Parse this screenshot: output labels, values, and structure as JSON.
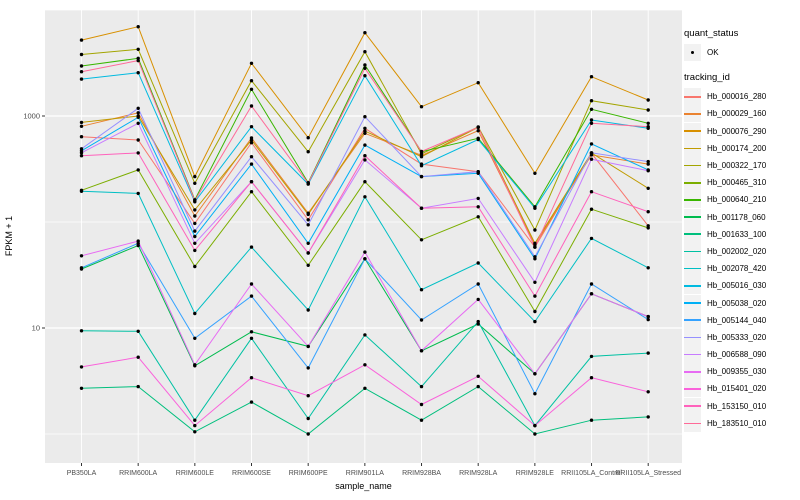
{
  "figure": {
    "y_axis_title": "FPKM + 1",
    "x_axis_title": "sample_name",
    "legend": {
      "quant_title": "quant_status",
      "ok_label": "OK",
      "tracking_title": "tracking_id"
    },
    "style": {
      "panel_bg": "#EBEBEB",
      "grid_color": "#FFFFFF",
      "tick_text_color": "#4D4D4D",
      "tick_mark_color": "#333333",
      "point_color": "#000000",
      "legend_key_bg": "#F2F2F2"
    }
  },
  "chart_data": {
    "type": "line",
    "title": "",
    "xlabel": "sample_name",
    "ylabel": "FPKM + 1",
    "y_scale": "log10",
    "y_breaks": [
      10,
      1000
    ],
    "y_tick_labels": [
      "10",
      "1000"
    ],
    "y_minor_decades": [
      1,
      100,
      10000
    ],
    "ylim_log": [
      0,
      4.27
    ],
    "grid": true,
    "legend_position": "right",
    "point_marker": "black dot (quant_status OK)",
    "categories": [
      "PB350LA",
      "RRIM600LA",
      "RRIM600LE",
      "RRIM600SE",
      "RRIM600PE",
      "RRIM901LA",
      "RRIM928BA",
      "RRIM928LA",
      "RRIM928LE",
      "RRII105LA_Control",
      "RRII105LA_Stressed"
    ],
    "series": [
      {
        "name": "Hb_000016_280",
        "color": "#F8766D",
        "values": [
          638,
          594,
          97,
          560,
          105,
          766,
          352,
          298,
          58,
          445,
          92
        ]
      },
      {
        "name": "Hb_000029_160",
        "color": "#EA8331",
        "values": [
          800,
          1072,
          114,
          620,
          121,
          687,
          425,
          726,
          61,
          430,
          352
        ]
      },
      {
        "name": "Hb_000076_290",
        "color": "#D89000",
        "values": [
          5200,
          6950,
          268,
          3140,
          624,
          6110,
          1224,
          2061,
          288,
          2350,
          1416
        ]
      },
      {
        "name": "Hb_000174_200",
        "color": "#C09B00",
        "values": [
          870,
          1000,
          130,
          594,
          118,
          721,
          413,
          782,
          63,
          448,
          208
        ]
      },
      {
        "name": "Hb_000322_170",
        "color": "#A3A500",
        "values": [
          3800,
          4255,
          232,
          2153,
          460,
          4042,
          440,
          790,
          84,
          1394,
          1139
        ]
      },
      {
        "name": "Hb_000465_310",
        "color": "#7CAE00",
        "values": [
          199,
          310,
          38,
          193,
          39,
          240,
          68,
          112,
          14.3,
          132,
          88
        ]
      },
      {
        "name": "Hb_000640_210",
        "color": "#39B600",
        "values": [
          2960,
          3505,
          162,
          1786,
          235,
          3027,
          460,
          616,
          139,
          1157,
          853
        ]
      },
      {
        "name": "Hb_001178_060",
        "color": "#00BB4E",
        "values": [
          36,
          60,
          4.4,
          9.2,
          6.7,
          45,
          6.1,
          10.9,
          3.7,
          21,
          12.8
        ]
      },
      {
        "name": "Hb_001633_100",
        "color": "#00BF7D",
        "values": [
          2.7,
          2.8,
          1.05,
          2.0,
          1.0,
          2.7,
          1.35,
          2.8,
          1.0,
          1.35,
          1.45
        ]
      },
      {
        "name": "Hb_002002_020",
        "color": "#00C1A3",
        "values": [
          9.4,
          9.3,
          1.35,
          8.0,
          1.4,
          8.6,
          2.8,
          11.5,
          1.2,
          5.4,
          5.8
        ]
      },
      {
        "name": "Hb_002078_420",
        "color": "#00BFC4",
        "values": [
          195,
          186,
          13.7,
          58,
          14.8,
          173,
          23,
          41,
          11.5,
          70,
          37
        ]
      },
      {
        "name": "Hb_005016_030",
        "color": "#00BAE0",
        "values": [
          2230,
          2560,
          155,
          793,
          228,
          2399,
          340,
          600,
          135,
          916,
          766
        ]
      },
      {
        "name": "Hb_005038_020",
        "color": "#00B0F6",
        "values": [
          470,
          972,
          73,
          352,
          63,
          532,
          268,
          288,
          45,
          545,
          310
        ]
      },
      {
        "name": "Hb_005144_040",
        "color": "#35A2FF",
        "values": [
          37,
          63,
          8.0,
          20,
          4.2,
          45,
          11.9,
          26,
          2.4,
          26,
          12.0
        ]
      },
      {
        "name": "Hb_005333_020",
        "color": "#9590FF",
        "values": [
          490,
          1182,
          82,
          413,
          94,
          984,
          268,
          298,
          47,
          450,
          371
        ]
      },
      {
        "name": "Hb_006588_090",
        "color": "#C77CFF",
        "values": [
          450,
          853,
          63,
          240,
          51,
          385,
          135,
          167,
          27,
          391,
          305
        ]
      },
      {
        "name": "Hb_009355_030",
        "color": "#E76BF3",
        "values": [
          48,
          66,
          4.5,
          26,
          6.7,
          52,
          6.1,
          18.6,
          3.7,
          21,
          12.8
        ]
      },
      {
        "name": "Hb_015401_020",
        "color": "#FA62DB",
        "values": [
          4.3,
          5.3,
          1.2,
          3.4,
          2.3,
          4.5,
          1.9,
          3.5,
          1.2,
          3.4,
          2.5
        ]
      },
      {
        "name": "Hb_153150_010",
        "color": "#FF62BC",
        "values": [
          422,
          449,
          54,
          240,
          51,
          422,
          135,
          139,
          20,
          193,
          125
        ]
      },
      {
        "name": "Hb_183510_010",
        "color": "#FF6A98",
        "values": [
          2620,
          3330,
          159,
          1242,
          232,
          2818,
          462,
          782,
          58,
          853,
          793
        ]
      }
    ]
  }
}
